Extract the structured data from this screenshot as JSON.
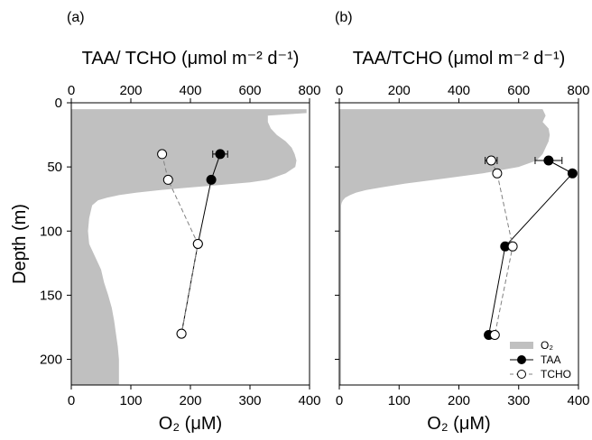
{
  "chart_data": [
    {
      "panel_label": "(a)",
      "type": "line",
      "top_axis_label": "TAA/ TCHO (μmol m⁻² d⁻¹)",
      "top_axis_range": [
        0,
        800
      ],
      "top_ticks": [
        "0",
        "200",
        "400",
        "600",
        "800"
      ],
      "bottom_axis_label": "O₂ (μM)",
      "bottom_axis_range": [
        0,
        400
      ],
      "bottom_ticks": [
        "0",
        "100",
        "200",
        "300",
        "400"
      ],
      "ylabel": "Depth (m)",
      "y_range": [
        0,
        220
      ],
      "y_inverted": true,
      "y_ticks": [
        "0",
        "50",
        "100",
        "150",
        "200"
      ],
      "o2_profile": {
        "depth": [
          5,
          8,
          10,
          15,
          20,
          25,
          30,
          35,
          40,
          45,
          50,
          55,
          60,
          62,
          64,
          66,
          68,
          70,
          72,
          74,
          76,
          80,
          90,
          100,
          110,
          120,
          130,
          140,
          150,
          160,
          170,
          180,
          190,
          200,
          210,
          220
        ],
        "o2": [
          395,
          395,
          330,
          330,
          335,
          345,
          360,
          370,
          375,
          378,
          376,
          360,
          330,
          300,
          250,
          200,
          150,
          110,
          80,
          60,
          45,
          35,
          30,
          28,
          30,
          40,
          50,
          55,
          62,
          68,
          72,
          75,
          78,
          80,
          80,
          80
        ]
      },
      "series": [
        {
          "name": "TAA",
          "depth": [
            40,
            60,
            110,
            180
          ],
          "value": [
            500,
            470,
            425,
            370
          ],
          "error": [
            25,
            0,
            0,
            0
          ]
        },
        {
          "name": "TCHO",
          "depth": [
            40,
            60,
            110,
            180
          ],
          "value": [
            305,
            325,
            425,
            370
          ],
          "error": [
            10,
            0,
            0,
            0
          ]
        }
      ]
    },
    {
      "panel_label": "(b)",
      "type": "line",
      "top_axis_label": "TAA/TCHO (μmol m⁻² d⁻¹)",
      "top_axis_range": [
        0,
        800
      ],
      "top_ticks": [
        "0",
        "200",
        "400",
        "600",
        "800"
      ],
      "bottom_axis_label": "O₂ (μM)",
      "bottom_axis_range": [
        0,
        400
      ],
      "bottom_ticks": [
        "0",
        "100",
        "200",
        "300",
        "400"
      ],
      "y_range": [
        0,
        220
      ],
      "y_inverted": true,
      "o2_profile": {
        "depth": [
          5,
          10,
          15,
          20,
          25,
          30,
          35,
          40,
          45,
          50,
          55,
          60,
          63,
          66,
          68,
          70,
          72,
          74,
          76,
          78,
          80,
          100,
          150,
          200,
          220
        ],
        "o2": [
          340,
          345,
          340,
          350,
          352,
          350,
          345,
          340,
          330,
          300,
          240,
          160,
          110,
          70,
          45,
          28,
          18,
          10,
          6,
          4,
          3,
          3,
          3,
          3,
          3
        ]
      },
      "series": [
        {
          "name": "TAA",
          "depth": [
            45,
            55,
            112,
            181
          ],
          "value": [
            700,
            780,
            555,
            500
          ],
          "error": [
            45,
            0,
            0,
            0
          ]
        },
        {
          "name": "TCHO",
          "depth": [
            45,
            55,
            112,
            181
          ],
          "value": [
            508,
            528,
            580,
            520
          ],
          "error": [
            20,
            0,
            0,
            0
          ]
        }
      ]
    }
  ],
  "legend": {
    "placement": "bottom-right of panel (b)",
    "items": [
      {
        "label": "O₂",
        "kind": "fill"
      },
      {
        "label": "TAA",
        "kind": "filled-marker"
      },
      {
        "label": "TCHO",
        "kind": "open-marker"
      }
    ]
  },
  "colors": {
    "o2_fill": "#c0c0c0",
    "taa_line": "#000000",
    "tcho_line": "#808080",
    "axis": "#000000"
  }
}
